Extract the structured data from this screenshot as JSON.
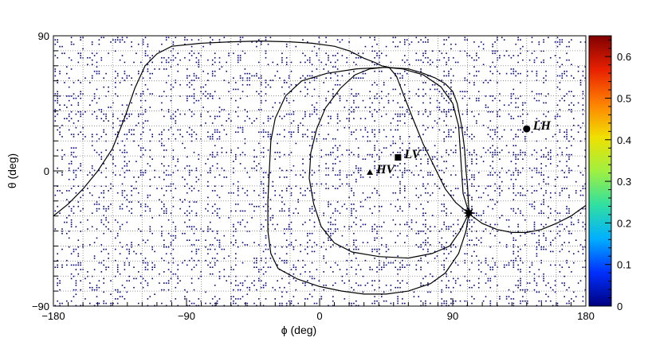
{
  "chart_data": {
    "type": "heatmap",
    "title": "",
    "xlabel": "ϕ (deg)",
    "ylabel": "θ (deg)",
    "xlim": [
      -180,
      180
    ],
    "ylim": [
      -90,
      90
    ],
    "xticks": [
      {
        "value": -180,
        "label": "−180"
      },
      {
        "value": -90,
        "label": "−90"
      },
      {
        "value": 0,
        "label": "0"
      },
      {
        "value": 90,
        "label": "90"
      },
      {
        "value": 180,
        "label": "180"
      }
    ],
    "yticks": [
      {
        "value": -90,
        "label": "−90"
      },
      {
        "value": 0,
        "label": "0"
      },
      {
        "value": 90,
        "label": "90"
      }
    ],
    "grid": true,
    "colorbar": {
      "min": 0,
      "max": 0.65,
      "ticks": [
        {
          "value": 0,
          "label": "0"
        },
        {
          "value": 0.1,
          "label": "0.1"
        },
        {
          "value": 0.2,
          "label": "0.2"
        },
        {
          "value": 0.3,
          "label": "0.3"
        },
        {
          "value": 0.4,
          "label": "0.4"
        },
        {
          "value": 0.5,
          "label": "0.5"
        },
        {
          "value": 0.6,
          "label": "0.6"
        }
      ],
      "colors": [
        "#00007f",
        "#0030ff",
        "#00b0ff",
        "#30e0a0",
        "#a0f040",
        "#f0e000",
        "#ff8000",
        "#e82000",
        "#800000"
      ]
    },
    "markers": [
      {
        "label": "HV",
        "shape": "triangle",
        "phi": 34,
        "theta": -1
      },
      {
        "label": "LV",
        "shape": "square",
        "phi": 53,
        "theta": 9
      },
      {
        "label": "LH",
        "shape": "circle",
        "phi": 140,
        "theta": 28
      },
      {
        "label": "",
        "shape": "star",
        "phi": 101,
        "theta": -28
      }
    ],
    "curves": [
      {
        "points": [
          [
            -180,
            -30
          ],
          [
            -170,
            -22
          ],
          [
            -160,
            -12
          ],
          [
            -150,
            0
          ],
          [
            -140,
            15
          ],
          [
            -132,
            35
          ],
          [
            -125,
            55
          ],
          [
            -118,
            70
          ],
          [
            -110,
            78
          ],
          [
            -100,
            83
          ],
          [
            -80,
            85
          ],
          [
            -60,
            86
          ],
          [
            -40,
            86.5
          ],
          [
            -20,
            86
          ],
          [
            -5,
            85
          ],
          [
            10,
            83
          ],
          [
            20,
            80
          ],
          [
            30,
            75
          ],
          [
            38,
            72
          ],
          [
            42,
            70
          ],
          [
            47,
            69
          ],
          [
            52,
            63
          ],
          [
            57,
            50
          ],
          [
            63,
            35
          ],
          [
            70,
            18
          ],
          [
            78,
            2
          ],
          [
            85,
            -12
          ],
          [
            92,
            -21
          ],
          [
            98,
            -26
          ],
          [
            103,
            -30
          ],
          [
            110,
            -35
          ],
          [
            120,
            -39
          ],
          [
            130,
            -41
          ],
          [
            140,
            -41
          ],
          [
            150,
            -39
          ],
          [
            160,
            -35
          ],
          [
            170,
            -30
          ],
          [
            180,
            -23
          ]
        ]
      },
      {
        "points": [
          [
            45,
            69
          ],
          [
            60,
            68
          ],
          [
            70,
            65
          ],
          [
            78,
            62
          ],
          [
            85,
            58
          ],
          [
            90,
            53
          ],
          [
            93,
            45
          ],
          [
            96,
            30
          ],
          [
            98,
            15
          ],
          [
            99,
            0
          ],
          [
            100,
            -10
          ],
          [
            101,
            -28
          ],
          [
            99,
            -40
          ],
          [
            94,
            -55
          ],
          [
            85,
            -68
          ],
          [
            75,
            -75
          ],
          [
            60,
            -80
          ],
          [
            45,
            -82
          ],
          [
            30,
            -82
          ],
          [
            15,
            -80
          ],
          [
            0,
            -77
          ],
          [
            -15,
            -72
          ],
          [
            -28,
            -65
          ],
          [
            -33,
            -55
          ],
          [
            -35,
            -40
          ],
          [
            -35,
            -20
          ],
          [
            -34,
            0
          ],
          [
            -33,
            20
          ],
          [
            -30,
            35
          ],
          [
            -23,
            50
          ],
          [
            -12,
            60
          ],
          [
            5,
            65
          ],
          [
            25,
            68
          ],
          [
            45,
            69
          ]
        ]
      },
      {
        "points": [
          [
            44,
            69
          ],
          [
            56,
            68
          ],
          [
            70,
            64
          ],
          [
            82,
            56
          ],
          [
            90,
            45
          ],
          [
            94,
            30
          ],
          [
            95,
            15
          ],
          [
            96,
            0
          ],
          [
            97,
            -15
          ],
          [
            101,
            -28
          ],
          [
            95,
            -40
          ],
          [
            88,
            -50
          ],
          [
            76,
            -55
          ],
          [
            60,
            -58
          ],
          [
            40,
            -57
          ],
          [
            22,
            -54
          ],
          [
            10,
            -48
          ],
          [
            1,
            -37
          ],
          [
            -4,
            -22
          ],
          [
            -7,
            -5
          ],
          [
            -6,
            12
          ],
          [
            -2,
            28
          ],
          [
            4,
            42
          ],
          [
            14,
            55
          ],
          [
            24,
            64
          ],
          [
            34,
            68
          ],
          [
            44,
            69
          ]
        ]
      }
    ]
  }
}
